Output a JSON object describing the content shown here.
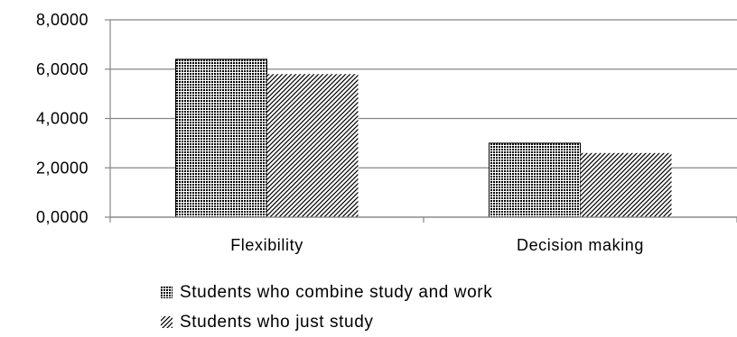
{
  "chart_data": {
    "type": "bar",
    "categories": [
      "Flexibility",
      "Decision making"
    ],
    "series": [
      {
        "name": "Students who combine study and work",
        "values": [
          6.4,
          3.0
        ],
        "pattern": "dense-grid"
      },
      {
        "name": "Students who just study",
        "values": [
          5.8,
          2.6
        ],
        "pattern": "diagonal-hatch"
      }
    ],
    "yticks": [
      "0,0000",
      "2,0000",
      "4,0000",
      "6,0000",
      "8,0000"
    ],
    "ylim": [
      0,
      8
    ],
    "title": "",
    "xlabel": "",
    "ylabel": "",
    "grid": true,
    "legend_position": "bottom"
  },
  "colors": {
    "bar_ink": "#000000",
    "grid": "#868686",
    "axis": "#868686"
  }
}
